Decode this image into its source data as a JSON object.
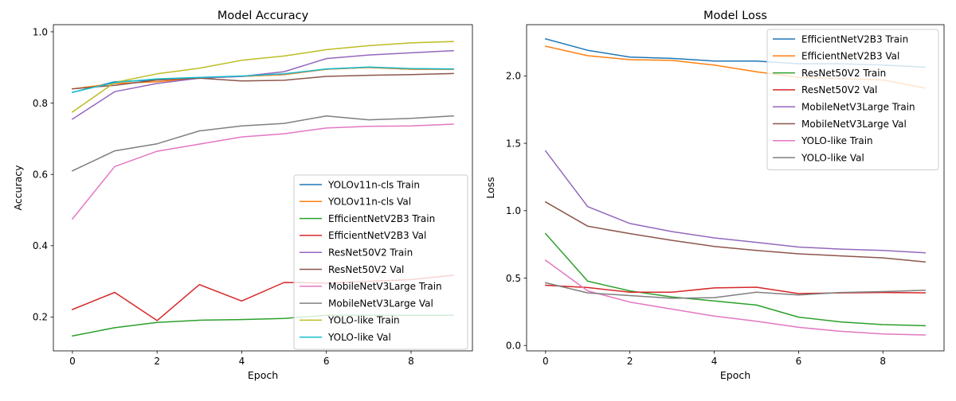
{
  "chart_data": [
    {
      "type": "line",
      "title": "Model Accuracy",
      "xlabel": "Epoch",
      "ylabel": "Accuracy",
      "xlim": [
        -0.45,
        9.45
      ],
      "ylim": [
        0.105,
        1.02
      ],
      "xticks": [
        0,
        2,
        4,
        6,
        8
      ],
      "yticks": [
        0.2,
        0.4,
        0.6,
        0.8,
        1.0
      ],
      "ytick_labels": [
        "0.2",
        "0.4",
        "0.6",
        "0.8",
        "1.0"
      ],
      "legend_placement": "lower-right",
      "x": [
        0,
        1,
        2,
        3,
        4,
        5,
        6,
        7,
        8,
        9
      ],
      "series": [
        {
          "name": "YOLOv11n-cls Train",
          "color": "#1f77b4",
          "values": [
            0.83,
            0.86,
            0.865,
            0.87,
            0.875,
            0.88,
            0.895,
            0.9,
            0.895,
            0.895
          ]
        },
        {
          "name": "YOLOv11n-cls Val",
          "color": "#ff7f0e",
          "values": [
            0.84,
            0.855,
            0.86,
            0.87,
            0.875,
            0.88,
            0.895,
            0.9,
            0.895,
            0.895
          ]
        },
        {
          "name": "EfficientNetV2B3 Train",
          "color": "#2ca02c",
          "values": [
            0.147,
            0.17,
            0.185,
            0.191,
            0.193,
            0.196,
            0.205,
            0.205,
            0.205,
            0.205
          ]
        },
        {
          "name": "EfficientNetV2B3 Val",
          "color": "#d62728",
          "values": [
            0.221,
            0.269,
            0.19,
            0.291,
            0.245,
            0.297,
            0.295,
            0.3,
            0.305,
            0.317
          ]
        },
        {
          "name": "ResNet50V2 Train",
          "color": "#9467bd",
          "values": [
            0.755,
            0.832,
            0.855,
            0.87,
            0.875,
            0.888,
            0.925,
            0.935,
            0.941,
            0.947
          ]
        },
        {
          "name": "ResNet50V2 Val",
          "color": "#8c564b",
          "values": [
            0.84,
            0.85,
            0.865,
            0.87,
            0.862,
            0.864,
            0.875,
            0.878,
            0.88,
            0.883
          ]
        },
        {
          "name": "MobileNetV3Large Train",
          "color": "#e377c2",
          "values": [
            0.475,
            0.622,
            0.665,
            0.685,
            0.705,
            0.714,
            0.73,
            0.735,
            0.736,
            0.741
          ]
        },
        {
          "name": "MobileNetV3Large Val",
          "color": "#7f7f7f",
          "values": [
            0.61,
            0.666,
            0.686,
            0.722,
            0.736,
            0.743,
            0.764,
            0.753,
            0.757,
            0.764
          ]
        },
        {
          "name": "YOLO-like Train",
          "color": "#bcbd22",
          "values": [
            0.775,
            0.858,
            0.882,
            0.898,
            0.92,
            0.932,
            0.95,
            0.961,
            0.969,
            0.973
          ]
        },
        {
          "name": "YOLO-like Val",
          "color": "#17becf",
          "values": [
            0.83,
            0.858,
            0.868,
            0.872,
            0.876,
            0.882,
            0.896,
            0.901,
            0.897,
            0.896
          ]
        }
      ]
    },
    {
      "type": "line",
      "title": "Model Loss",
      "xlabel": "Epoch",
      "ylabel": "Loss",
      "xlim": [
        -0.45,
        9.45
      ],
      "ylim": [
        -0.04,
        2.38
      ],
      "xticks": [
        0,
        2,
        4,
        6,
        8
      ],
      "yticks": [
        0.0,
        0.5,
        1.0,
        1.5,
        2.0
      ],
      "ytick_labels": [
        "0.0",
        "0.5",
        "1.0",
        "1.5",
        "2.0"
      ],
      "legend_placement": "upper-right",
      "x": [
        0,
        1,
        2,
        3,
        4,
        5,
        6,
        7,
        8,
        9
      ],
      "series": [
        {
          "name": "EfficientNetV2B3 Train",
          "color": "#1f77b4",
          "values": [
            2.275,
            2.19,
            2.14,
            2.13,
            2.11,
            2.11,
            2.09,
            2.09,
            2.08,
            2.065
          ]
        },
        {
          "name": "EfficientNetV2B3 Val",
          "color": "#ff7f0e",
          "values": [
            2.22,
            2.15,
            2.12,
            2.115,
            2.08,
            2.03,
            1.99,
            1.98,
            1.97,
            1.91
          ]
        },
        {
          "name": "ResNet50V2 Train",
          "color": "#2ca02c",
          "values": [
            0.83,
            0.477,
            0.405,
            0.36,
            0.33,
            0.3,
            0.21,
            0.175,
            0.155,
            0.147
          ]
        },
        {
          "name": "ResNet50V2 Val",
          "color": "#d62728",
          "values": [
            0.447,
            0.43,
            0.395,
            0.395,
            0.427,
            0.432,
            0.385,
            0.39,
            0.393,
            0.39
          ]
        },
        {
          "name": "MobileNetV3Large Train",
          "color": "#9467bd",
          "values": [
            1.443,
            1.03,
            0.905,
            0.845,
            0.798,
            0.765,
            0.73,
            0.715,
            0.705,
            0.688
          ]
        },
        {
          "name": "MobileNetV3Large Val",
          "color": "#8c564b",
          "values": [
            1.065,
            0.885,
            0.83,
            0.78,
            0.735,
            0.705,
            0.68,
            0.665,
            0.65,
            0.62
          ]
        },
        {
          "name": "YOLO-like Train",
          "color": "#e377c2",
          "values": [
            0.632,
            0.405,
            0.322,
            0.27,
            0.218,
            0.18,
            0.135,
            0.105,
            0.085,
            0.078
          ]
        },
        {
          "name": "YOLO-like Val",
          "color": "#7f7f7f",
          "values": [
            0.465,
            0.39,
            0.37,
            0.35,
            0.355,
            0.395,
            0.375,
            0.393,
            0.4,
            0.41
          ]
        }
      ]
    }
  ]
}
